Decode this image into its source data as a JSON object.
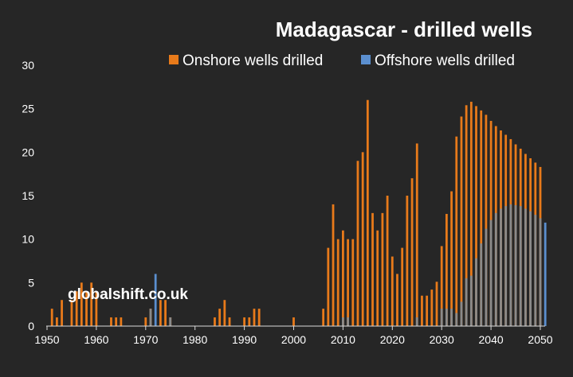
{
  "chart_data": {
    "type": "bar",
    "title": "Madagascar - drilled wells",
    "xlabel": "",
    "ylabel": "",
    "xlim": [
      1950,
      2050
    ],
    "ylim": [
      0,
      30
    ],
    "x_ticks": [
      "1950",
      "1960",
      "1970",
      "1980",
      "1990",
      "2000",
      "2010",
      "2020",
      "2030",
      "2040",
      "2050"
    ],
    "y_ticks": [
      "0",
      "5",
      "10",
      "15",
      "20",
      "25",
      "30"
    ],
    "legend_position": "top-right",
    "watermark": "globalshift.co.uk",
    "colors": {
      "onshore": "#e87a1a",
      "offshore": "#5b8fcf",
      "overlap": "#8a8a8a",
      "background": "#262626",
      "text": "#ffffff",
      "axis": "#d9d9d9"
    },
    "series": [
      {
        "name": "Onshore wells drilled",
        "points": [
          [
            1951,
            2
          ],
          [
            1952,
            1
          ],
          [
            1953,
            3
          ],
          [
            1955,
            3
          ],
          [
            1956,
            4
          ],
          [
            1957,
            5
          ],
          [
            1958,
            4
          ],
          [
            1959,
            5
          ],
          [
            1960,
            4
          ],
          [
            1963,
            1
          ],
          [
            1964,
            1
          ],
          [
            1965,
            1
          ],
          [
            1970,
            1
          ],
          [
            1971,
            2
          ],
          [
            1973,
            3
          ],
          [
            1974,
            3
          ],
          [
            1975,
            1
          ],
          [
            1984,
            1
          ],
          [
            1985,
            2
          ],
          [
            1986,
            3
          ],
          [
            1987,
            1
          ],
          [
            1990,
            1
          ],
          [
            1991,
            1
          ],
          [
            1992,
            2
          ],
          [
            1993,
            2
          ],
          [
            2000,
            1
          ],
          [
            2006,
            2
          ],
          [
            2007,
            9
          ],
          [
            2008,
            14
          ],
          [
            2009,
            10
          ],
          [
            2010,
            11
          ],
          [
            2011,
            10
          ],
          [
            2012,
            10
          ],
          [
            2013,
            19
          ],
          [
            2014,
            20
          ],
          [
            2015,
            26
          ],
          [
            2016,
            13
          ],
          [
            2017,
            11
          ],
          [
            2018,
            13
          ],
          [
            2019,
            15
          ],
          [
            2020,
            8
          ],
          [
            2021,
            6
          ],
          [
            2022,
            9
          ],
          [
            2023,
            15
          ],
          [
            2024,
            17
          ],
          [
            2025,
            21
          ],
          [
            2026,
            3.5
          ],
          [
            2027,
            3.5
          ],
          [
            2028,
            4.2
          ],
          [
            2029,
            5.1
          ],
          [
            2030,
            9.2
          ],
          [
            2031,
            12.9
          ],
          [
            2032,
            15.5
          ],
          [
            2033,
            21.8
          ],
          [
            2034,
            24.1
          ],
          [
            2035,
            25.4
          ],
          [
            2036,
            25.8
          ],
          [
            2037,
            25.3
          ],
          [
            2038,
            24.8
          ],
          [
            2039,
            24.3
          ],
          [
            2040,
            23.6
          ],
          [
            2041,
            23
          ],
          [
            2042,
            22.5
          ],
          [
            2043,
            22
          ],
          [
            2044,
            21.5
          ],
          [
            2045,
            20.9
          ],
          [
            2046,
            20.4
          ],
          [
            2047,
            19.8
          ],
          [
            2048,
            19.3
          ],
          [
            2049,
            18.8
          ],
          [
            2050,
            18.3
          ]
        ]
      },
      {
        "name": "Offshore wells drilled",
        "points": [
          [
            1971,
            2
          ],
          [
            1972,
            6
          ],
          [
            1975,
            1
          ],
          [
            2010,
            1
          ],
          [
            2011,
            1
          ],
          [
            2025,
            1
          ],
          [
            2030,
            2
          ],
          [
            2031,
            2
          ],
          [
            2032,
            2
          ],
          [
            2033,
            1.5
          ],
          [
            2034,
            2.8
          ],
          [
            2035,
            5.5
          ],
          [
            2036,
            5.8
          ],
          [
            2037,
            7.8
          ],
          [
            2038,
            9.5
          ],
          [
            2039,
            11.2
          ],
          [
            2040,
            12.2
          ],
          [
            2041,
            13
          ],
          [
            2042,
            13.5
          ],
          [
            2043,
            13.8
          ],
          [
            2044,
            14
          ],
          [
            2045,
            13.9
          ],
          [
            2046,
            13.8
          ],
          [
            2047,
            13.5
          ],
          [
            2048,
            13.2
          ],
          [
            2049,
            12.8
          ],
          [
            2050,
            12.4
          ],
          [
            2051,
            11.9
          ]
        ]
      }
    ]
  }
}
